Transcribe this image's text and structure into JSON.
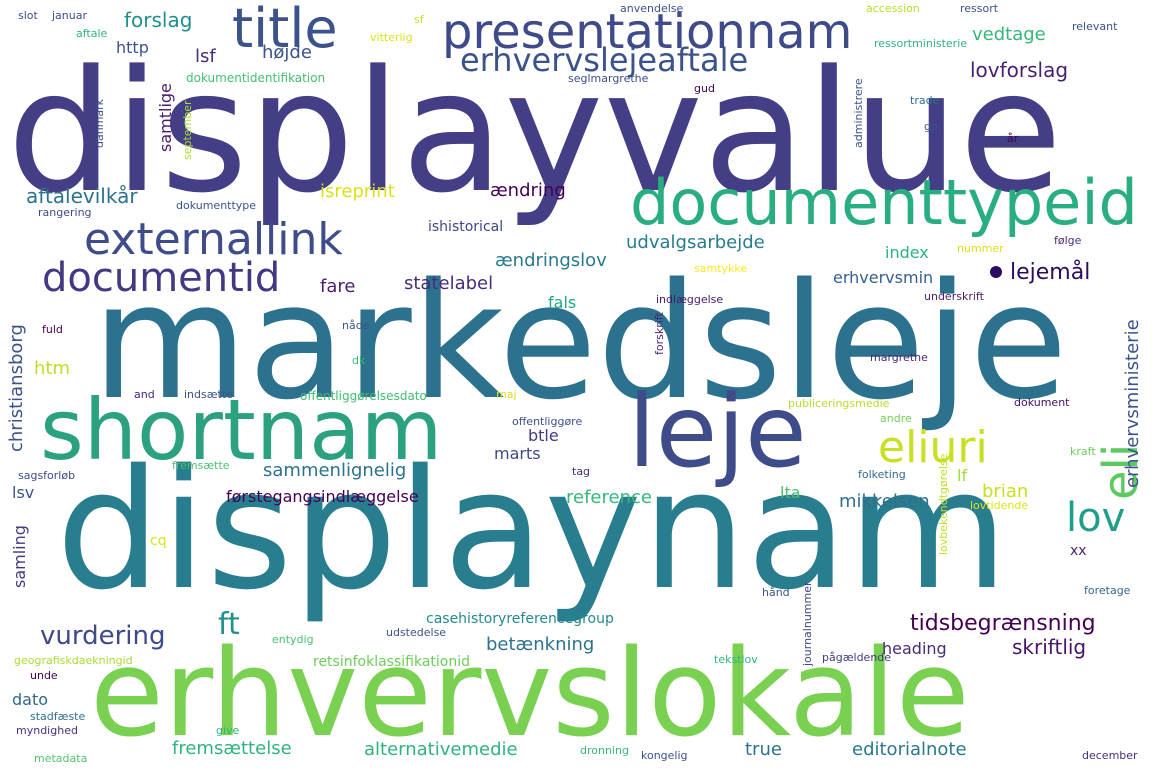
{
  "words": [
    {
      "text": "displayvalue",
      "color": "#433e85"
    },
    {
      "text": "markedsleje",
      "color": "#2c728e"
    },
    {
      "text": "displaynam",
      "color": "#287d8e"
    },
    {
      "text": "erhvervslokale",
      "color": "#7ad151"
    },
    {
      "text": "shortnam",
      "color": "#2ca17f"
    },
    {
      "text": "leje",
      "color": "#3e4c8a"
    },
    {
      "text": "documenttypeid",
      "color": "#29af7f"
    },
    {
      "text": "presentationnam",
      "color": "#3e4a89"
    },
    {
      "text": "title",
      "color": "#3b528b"
    },
    {
      "text": "externallink",
      "color": "#3e4c8a"
    },
    {
      "text": "documentid",
      "color": "#453781"
    },
    {
      "text": "eliuri",
      "color": "#c8e020"
    },
    {
      "text": "eli",
      "color": "#5ec962"
    },
    {
      "text": "lov",
      "color": "#1f9e89"
    },
    {
      "text": "erhvervslejeaftale",
      "color": "#3b528b"
    },
    {
      "text": "lovforslag",
      "color": "#481f70"
    },
    {
      "text": "forslag",
      "color": "#218f8d"
    },
    {
      "text": "http",
      "color": "#3b528b"
    },
    {
      "text": "lsf",
      "color": "#472d7b"
    },
    {
      "text": "højde",
      "color": "#3b528b"
    },
    {
      "text": "vedtage",
      "color": "#35b779"
    },
    {
      "text": "samtlige",
      "color": "#481a6c"
    },
    {
      "text": "dokumentidentifikation",
      "color": "#44bf70"
    },
    {
      "text": "aftalevilkår",
      "color": "#2c728e"
    },
    {
      "text": "isreprint",
      "color": "#d8e219"
    },
    {
      "text": "ændring",
      "color": "#440154"
    },
    {
      "text": "udvalgsarbejde",
      "color": "#287c8e"
    },
    {
      "text": "ændringslov",
      "color": "#2a788e"
    },
    {
      "text": "index",
      "color": "#2db27d"
    },
    {
      "text": "lejemål",
      "color": "#2a0d5f"
    },
    {
      "text": "erhvervsmin",
      "color": "#355f8d"
    },
    {
      "text": "erhvervsministerie",
      "color": "#3b528b"
    },
    {
      "text": "ishistorical",
      "color": "#414487"
    },
    {
      "text": "christiansborg",
      "color": "#3b528b"
    },
    {
      "text": "fare",
      "color": "#481f70"
    },
    {
      "text": "statelabel",
      "color": "#472d7b"
    },
    {
      "text": "fals",
      "color": "#22a884"
    },
    {
      "text": "htm",
      "color": "#bddf26"
    },
    {
      "text": "btle",
      "color": "#443983"
    },
    {
      "text": "marts",
      "color": "#3e4989"
    },
    {
      "text": "sammenlignelig",
      "color": "#2c728e"
    },
    {
      "text": "lf",
      "color": "#a2da37"
    },
    {
      "text": "brian",
      "color": "#c8e020"
    },
    {
      "text": "førstegangsindlæggelse",
      "color": "#440154"
    },
    {
      "text": "reference",
      "color": "#35b779"
    },
    {
      "text": "lta",
      "color": "#4ac16d"
    },
    {
      "text": "mikkelsen",
      "color": "#2d708e"
    },
    {
      "text": "lsv",
      "color": "#3b528b"
    },
    {
      "text": "cq",
      "color": "#d8e219"
    },
    {
      "text": "xx",
      "color": "#482576"
    },
    {
      "text": "samling",
      "color": "#443983"
    },
    {
      "text": "vurdering",
      "color": "#3e4a89"
    },
    {
      "text": "ft",
      "color": "#21918c"
    },
    {
      "text": "tidsbegrænsning",
      "color": "#440154"
    },
    {
      "text": "casehistoryreferencegroup",
      "color": "#238a8d"
    },
    {
      "text": "betænkning",
      "color": "#2c728e"
    },
    {
      "text": "heading",
      "color": "#472c7a"
    },
    {
      "text": "skriftlig",
      "color": "#481467"
    },
    {
      "text": "dato",
      "color": "#31688e"
    },
    {
      "text": "retsinfoklassifikationid",
      "color": "#6ccd5a"
    },
    {
      "text": "fremsættelse",
      "color": "#2fb47c"
    },
    {
      "text": "alternativemedie",
      "color": "#2fb47c"
    },
    {
      "text": "true",
      "color": "#2c728e"
    },
    {
      "text": "editorialnote",
      "color": "#2a788e"
    },
    {
      "text": "geografiskdaekningid",
      "color": "#aadc32"
    },
    {
      "text": "offentliggørelsesdato",
      "color": "#3fbc73"
    },
    {
      "text": "publiceringsmedie",
      "color": "#b5de2b"
    },
    {
      "text": "offentliggøre",
      "color": "#3b528b"
    },
    {
      "text": "dokument",
      "color": "#470e61"
    },
    {
      "text": "andre",
      "color": "#73d056"
    },
    {
      "text": "forskrift",
      "color": "#482878"
    },
    {
      "text": "indlæggelse",
      "color": "#481a6c"
    },
    {
      "text": "underskrift",
      "color": "#482173"
    },
    {
      "text": "følge",
      "color": "#472d7b"
    },
    {
      "text": "margrethe",
      "color": "#482878"
    },
    {
      "text": "nåde",
      "color": "#3b528b"
    },
    {
      "text": "dk",
      "color": "#38b977"
    },
    {
      "text": "fuld",
      "color": "#440154"
    },
    {
      "text": "and",
      "color": "#482475"
    },
    {
      "text": "indsætte",
      "color": "#3b528b"
    },
    {
      "text": "maj",
      "color": "#d8e219"
    },
    {
      "text": "tag",
      "color": "#482878"
    },
    {
      "text": "folketing",
      "color": "#31688e"
    },
    {
      "text": "kraft",
      "color": "#6ccd5a"
    },
    {
      "text": "lovbekendtgørelse",
      "color": "#c0df25"
    },
    {
      "text": "lovtidende",
      "color": "#dde318"
    },
    {
      "text": "sagsforløb",
      "color": "#3e4c8a"
    },
    {
      "text": "fremsætte",
      "color": "#4ac16d"
    },
    {
      "text": "rangering",
      "color": "#3f4889"
    },
    {
      "text": "dokumenttype",
      "color": "#3b528b"
    },
    {
      "text": "hånd",
      "color": "#3b528b"
    },
    {
      "text": "foretage",
      "color": "#31688e"
    },
    {
      "text": "journalnummer",
      "color": "#414487"
    },
    {
      "text": "entydig",
      "color": "#4ac16d"
    },
    {
      "text": "udstedelse",
      "color": "#3b528b"
    },
    {
      "text": "pågældende",
      "color": "#453882"
    },
    {
      "text": "unde",
      "color": "#440154"
    },
    {
      "text": "stadfæste",
      "color": "#2d708e"
    },
    {
      "text": "myndighed",
      "color": "#46327e"
    },
    {
      "text": "give",
      "color": "#2fb47c"
    },
    {
      "text": "tekstlov",
      "color": "#2fb47c"
    },
    {
      "text": "metadata",
      "color": "#52c569"
    },
    {
      "text": "dronning",
      "color": "#38b977"
    },
    {
      "text": "kongelig",
      "color": "#3b528b"
    },
    {
      "text": "december",
      "color": "#46307e"
    },
    {
      "text": "slot",
      "color": "#3b528b"
    },
    {
      "text": "januar",
      "color": "#3e4c8a"
    },
    {
      "text": "aftale",
      "color": "#2fb47c"
    },
    {
      "text": "sf",
      "color": "#c8e020"
    },
    {
      "text": "vitterlig",
      "color": "#d8e219"
    },
    {
      "text": "anvendelse",
      "color": "#3b528b"
    },
    {
      "text": "accession",
      "color": "#b5de2b"
    },
    {
      "text": "ressort",
      "color": "#3b528b"
    },
    {
      "text": "relevant",
      "color": "#3b528b"
    },
    {
      "text": "ressortministerie",
      "color": "#2fb47c"
    },
    {
      "text": "seglmargrethe",
      "color": "#3e4c8a"
    },
    {
      "text": "gud",
      "color": "#440154"
    },
    {
      "text": "administrere",
      "color": "#3b528b"
    },
    {
      "text": "trade",
      "color": "#2d708e"
    },
    {
      "text": "gø",
      "color": "#3b528b"
    },
    {
      "text": "år",
      "color": "#440154"
    },
    {
      "text": "danmark",
      "color": "#3b528b"
    },
    {
      "text": "september",
      "color": "#aadc32"
    },
    {
      "text": "nummer",
      "color": "#d8e219"
    },
    {
      "text": "samtykke",
      "color": "#fde725"
    }
  ]
}
